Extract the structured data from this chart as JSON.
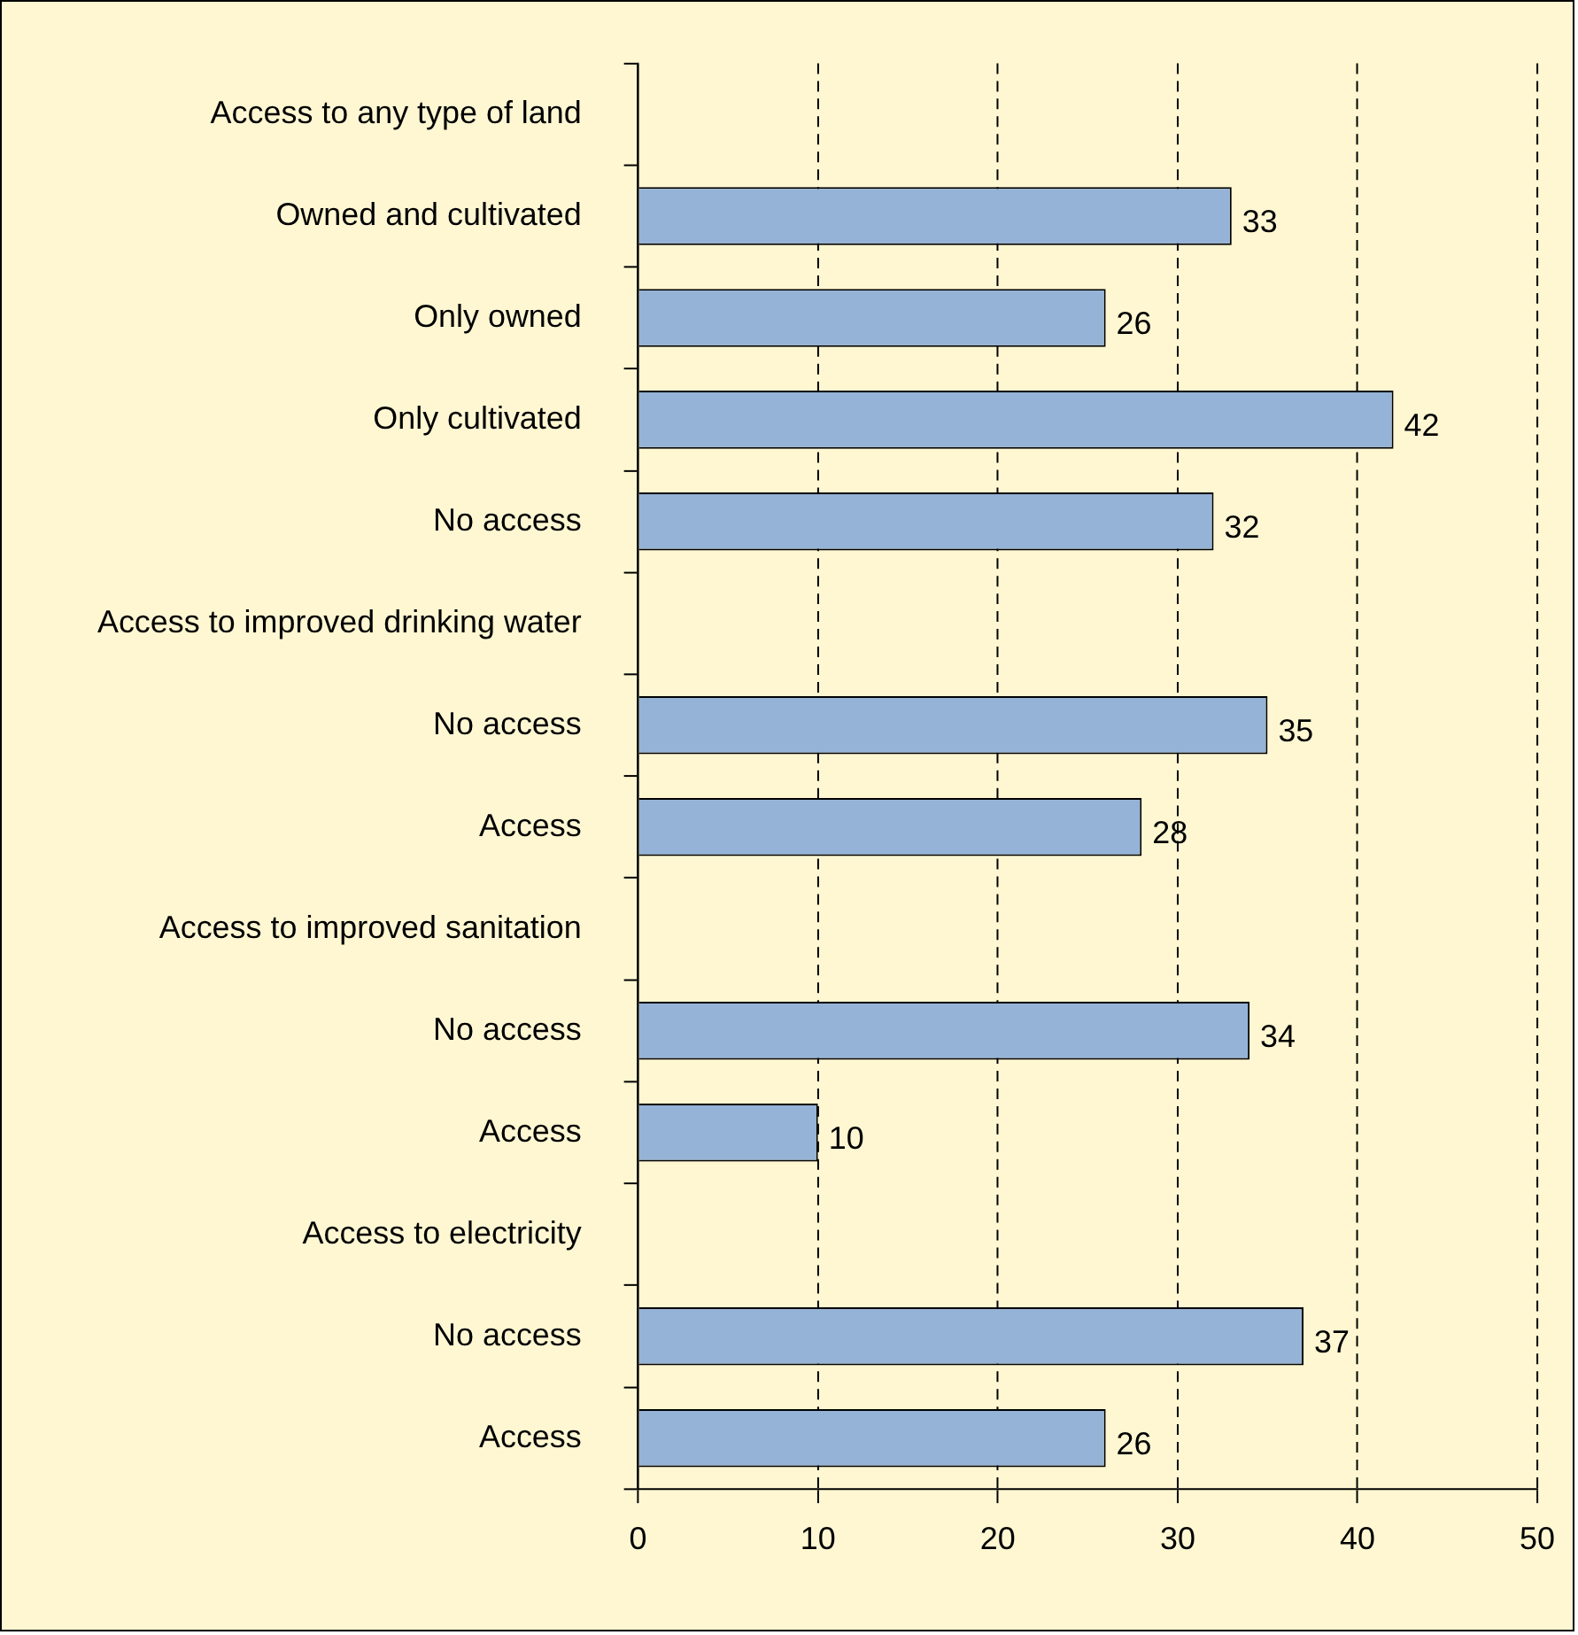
{
  "chart_data": {
    "type": "bar",
    "orientation": "horizontal",
    "categories": [
      "Access to any type of land",
      "Owned and cultivated",
      "Only owned",
      "Only cultivated",
      "No access",
      "Access to improved drinking water",
      "No access",
      "Access",
      "Access to improved sanitation",
      "No access",
      "Access",
      "Access to electricity",
      "No access",
      "Access"
    ],
    "values": [
      null,
      33,
      26,
      42,
      32,
      null,
      35,
      28,
      null,
      34,
      10,
      null,
      37,
      26
    ],
    "color": "#95b3d7",
    "xlim": [
      0,
      50
    ],
    "xticks": [
      0,
      10,
      20,
      30,
      40,
      50
    ],
    "grid": "x",
    "data_labels": true,
    "legend": false
  }
}
